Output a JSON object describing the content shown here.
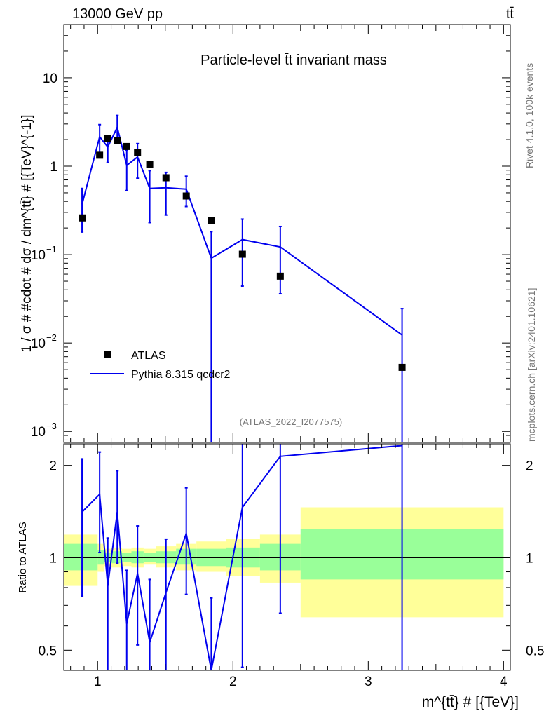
{
  "header": {
    "beam_label": "13000 GeV pp",
    "process_label": "tt̄"
  },
  "side_labels": {
    "rivet": "Rivet 4.1.0,  100k events",
    "mcplots": "mcplots.cern.ch [arXiv:2401.10621]"
  },
  "colors": {
    "mc_line": "#0000ee",
    "data_marker": "#000000",
    "band_inner": "#99ff99",
    "band_outer": "#ffff99"
  },
  "chart_data": [
    {
      "type": "scatter",
      "panel": "main",
      "title": "Particle-level t̄t invariant mass",
      "watermark": "(ATLAS_2022_I2077575)",
      "xlabel": "m^{tt̄} # [{TeV}]",
      "ylabel": "1 / σ # #cdot # dσ / dm^{tt̄} # [{TeV}^{-1}]",
      "yscale": "log",
      "ylim": [
        0.00075,
        40
      ],
      "xlim": [
        0.75,
        4.05
      ],
      "ytick_labels": [
        {
          "value": 0.001,
          "base": "10",
          "exp": "−3"
        },
        {
          "value": 0.01,
          "base": "10",
          "exp": "−2"
        },
        {
          "value": 0.1,
          "base": "10",
          "exp": "−1"
        },
        {
          "value": 1,
          "label": "1"
        },
        {
          "value": 10,
          "label": "10"
        }
      ],
      "legend": {
        "position": "bottom-left",
        "entries": [
          "ATLAS",
          "Pythia 8.315 qcdcr2"
        ]
      },
      "series": [
        {
          "name": "ATLAS",
          "style": "square-marker",
          "points": [
            {
              "x": 0.885,
              "y": 0.26
            },
            {
              "x": 1.015,
              "y": 1.33
            },
            {
              "x": 1.075,
              "y": 2.05
            },
            {
              "x": 1.145,
              "y": 1.95
            },
            {
              "x": 1.215,
              "y": 1.67
            },
            {
              "x": 1.295,
              "y": 1.42
            },
            {
              "x": 1.385,
              "y": 1.05
            },
            {
              "x": 1.505,
              "y": 0.74
            },
            {
              "x": 1.655,
              "y": 0.46
            },
            {
              "x": 1.84,
              "y": 0.245
            },
            {
              "x": 2.07,
              "y": 0.101
            },
            {
              "x": 2.35,
              "y": 0.057
            },
            {
              "x": 3.25,
              "y": 0.0053
            }
          ]
        },
        {
          "name": "Pythia 8.315 qcdcr2",
          "style": "line-with-errorbars",
          "points": [
            {
              "x": 0.885,
              "y": 0.37,
              "ylo": 0.18,
              "yhi": 0.56
            },
            {
              "x": 1.015,
              "y": 2.15,
              "ylo": 1.38,
              "yhi": 2.95
            },
            {
              "x": 1.075,
              "y": 1.65,
              "ylo": 1.1,
              "yhi": 2.2
            },
            {
              "x": 1.145,
              "y": 2.75,
              "ylo": 1.85,
              "yhi": 3.75
            },
            {
              "x": 1.215,
              "y": 1.02,
              "ylo": 0.53,
              "yhi": 1.52
            },
            {
              "x": 1.295,
              "y": 1.27,
              "ylo": 0.73,
              "yhi": 1.8
            },
            {
              "x": 1.385,
              "y": 0.56,
              "ylo": 0.23,
              "yhi": 0.89
            },
            {
              "x": 1.505,
              "y": 0.57,
              "ylo": 0.28,
              "yhi": 0.85
            },
            {
              "x": 1.655,
              "y": 0.55,
              "ylo": 0.35,
              "yhi": 0.77
            },
            {
              "x": 1.84,
              "y": 0.091,
              "ylo": 0.0007,
              "yhi": 0.182
            },
            {
              "x": 2.07,
              "y": 0.148,
              "ylo": 0.044,
              "yhi": 0.252
            },
            {
              "x": 2.35,
              "y": 0.122,
              "ylo": 0.036,
              "yhi": 0.208
            },
            {
              "x": 3.25,
              "y": 0.0123,
              "ylo": 0.0007,
              "yhi": 0.0245
            }
          ]
        }
      ]
    },
    {
      "type": "line",
      "panel": "ratio",
      "ylabel": "Ratio to ATLAS",
      "yscale": "log",
      "ylim": [
        0.43,
        2.35
      ],
      "xlim": [
        0.75,
        4.05
      ],
      "ytick_labels": [
        {
          "value": 0.5,
          "label": "0.5"
        },
        {
          "value": 1,
          "label": "1"
        },
        {
          "value": 2,
          "label": "2"
        }
      ],
      "xtick_labels": [
        {
          "value": 1,
          "label": "1"
        },
        {
          "value": 2,
          "label": "2"
        },
        {
          "value": 3,
          "label": "3"
        },
        {
          "value": 4,
          "label": "4"
        }
      ],
      "reference_line": 1,
      "bands": [
        {
          "xlo": 0.75,
          "xhi": 1.0,
          "inner": [
            0.91,
            1.11
          ],
          "outer": [
            0.81,
            1.19
          ]
        },
        {
          "xlo": 1.0,
          "xhi": 1.05,
          "inner": [
            0.95,
            1.06
          ],
          "outer": [
            0.9,
            1.11
          ]
        },
        {
          "xlo": 1.05,
          "xhi": 1.1,
          "inner": [
            0.97,
            1.04
          ],
          "outer": [
            0.94,
            1.07
          ]
        },
        {
          "xlo": 1.1,
          "xhi": 1.18,
          "inner": [
            0.96,
            1.05
          ],
          "outer": [
            0.93,
            1.08
          ]
        },
        {
          "xlo": 1.18,
          "xhi": 1.25,
          "inner": [
            0.97,
            1.04
          ],
          "outer": [
            0.94,
            1.07
          ]
        },
        {
          "xlo": 1.25,
          "xhi": 1.34,
          "inner": [
            0.96,
            1.05
          ],
          "outer": [
            0.93,
            1.08
          ]
        },
        {
          "xlo": 1.34,
          "xhi": 1.43,
          "inner": [
            0.97,
            1.04
          ],
          "outer": [
            0.95,
            1.07
          ]
        },
        {
          "xlo": 1.43,
          "xhi": 1.58,
          "inner": [
            0.96,
            1.05
          ],
          "outer": [
            0.93,
            1.09
          ]
        },
        {
          "xlo": 1.58,
          "xhi": 1.73,
          "inner": [
            0.95,
            1.07
          ],
          "outer": [
            0.91,
            1.11
          ]
        },
        {
          "xlo": 1.73,
          "xhi": 1.95,
          "inner": [
            0.94,
            1.07
          ],
          "outer": [
            0.9,
            1.13
          ]
        },
        {
          "xlo": 1.95,
          "xhi": 2.2,
          "inner": [
            0.93,
            1.08
          ],
          "outer": [
            0.87,
            1.15
          ]
        },
        {
          "xlo": 2.2,
          "xhi": 2.5,
          "inner": [
            0.91,
            1.11
          ],
          "outer": [
            0.83,
            1.19
          ]
        },
        {
          "xlo": 2.5,
          "xhi": 4.0,
          "inner": [
            0.85,
            1.24
          ],
          "outer": [
            0.64,
            1.46
          ]
        }
      ],
      "series": [
        {
          "name": "Pythia 8.315 qcdcr2 / ATLAS",
          "points": [
            {
              "x": 0.885,
              "y": 1.41,
              "ylo": 0.75,
              "yhi": 2.1
            },
            {
              "x": 1.015,
              "y": 1.61,
              "ylo": 1.04,
              "yhi": 2.21
            },
            {
              "x": 1.075,
              "y": 0.81,
              "ylo": 0.39,
              "yhi": 1.16
            },
            {
              "x": 1.145,
              "y": 1.41,
              "ylo": 0.96,
              "yhi": 1.92
            },
            {
              "x": 1.215,
              "y": 0.61,
              "ylo": 0.32,
              "yhi": 0.91
            },
            {
              "x": 1.295,
              "y": 0.89,
              "ylo": 0.52,
              "yhi": 1.27
            },
            {
              "x": 1.385,
              "y": 0.53,
              "ylo": 0.22,
              "yhi": 0.85
            },
            {
              "x": 1.505,
              "y": 0.77,
              "ylo": 0.38,
              "yhi": 1.15
            },
            {
              "x": 1.655,
              "y": 1.2,
              "ylo": 0.76,
              "yhi": 1.69
            },
            {
              "x": 1.84,
              "y": 0.37,
              "ylo": 0.003,
              "yhi": 0.74
            },
            {
              "x": 2.07,
              "y": 1.46,
              "ylo": 0.44,
              "yhi": 2.5
            },
            {
              "x": 2.35,
              "y": 2.14,
              "ylo": 0.66,
              "yhi": 3.6
            },
            {
              "x": 3.25,
              "y": 2.32,
              "ylo": 0.13,
              "yhi": 4.6
            }
          ]
        }
      ]
    }
  ]
}
